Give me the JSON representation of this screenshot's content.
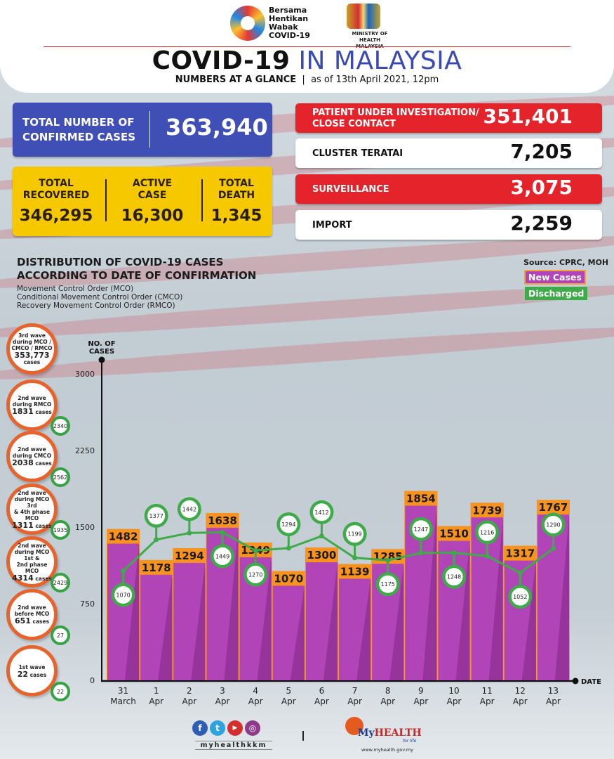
{
  "header": {
    "campaign_logo": [
      "Bersama",
      "Hentikan",
      "Wabak",
      "COVID-19"
    ],
    "ministry": [
      "MINISTRY OF HEALTH",
      "MALAYSIA"
    ],
    "title_bold": "COVID-19",
    "title_light": "IN MALAYSIA",
    "subtitle_bold": "NUMBERS AT A GLANCE",
    "subtitle_sep": "|",
    "subtitle_date": "as of 13th April 2021, 12pm"
  },
  "summary": {
    "confirmed": {
      "label_1": "TOTAL NUMBER OF",
      "label_2": "CONFIRMED CASES",
      "value": "363,940"
    },
    "recovered": {
      "label_1": "TOTAL",
      "label_2": "RECOVERED",
      "value": "346,295"
    },
    "active": {
      "label_1": "ACTIVE",
      "label_2": "CASE",
      "value": "16,300"
    },
    "death": {
      "label_1": "TOTAL",
      "label_2": "DEATH",
      "value": "1,345"
    }
  },
  "categories": [
    {
      "label_1": "PATIENT UNDER INVESTIGATION/",
      "label_2": "CLOSE CONTACT",
      "value": "351,401"
    },
    {
      "label_1": "CLUSTER TERATAI",
      "label_2": "",
      "value": "7,205"
    },
    {
      "label_1": "SURVEILLANCE",
      "label_2": "",
      "value": "3,075"
    },
    {
      "label_1": "IMPORT",
      "label_2": "",
      "value": "2,259"
    }
  ],
  "distribution": {
    "title_1": "DISTRIBUTION OF COVID-19 CASES",
    "title_2": "ACCORDING TO DATE OF CONFIRMATION",
    "notes": [
      "Movement Control Order (MCO)",
      "Conditional Movement Control Order (CMCO)",
      "Recovery Movement Control Order (RMCO)"
    ],
    "source": "Source: CPRC, MOH"
  },
  "waves": [
    {
      "lines": [
        "3rd wave",
        "during MCO /",
        "CMCO / RMCO"
      ],
      "cases": "353,773",
      "suffix": "cases",
      "discharged": ""
    },
    {
      "lines": [
        "2nd wave",
        "during RMCO"
      ],
      "cases": "1831",
      "suffix": "cases",
      "discharged": "2340"
    },
    {
      "lines": [
        "2nd wave",
        "during CMCO"
      ],
      "cases": "2038",
      "suffix": "cases",
      "discharged": "2562"
    },
    {
      "lines": [
        "2nd wave",
        "during MCO 3rd",
        "& 4th phase MCO"
      ],
      "cases": "1311",
      "suffix": "cases",
      "discharged": "1935"
    },
    {
      "lines": [
        "2nd wave",
        "during MCO 1st &",
        "2nd phase MCO"
      ],
      "cases": "4314",
      "suffix": "cases",
      "discharged": "2429"
    },
    {
      "lines": [
        "2nd wave",
        "before MCO"
      ],
      "cases": "651",
      "suffix": "cases",
      "discharged": "27"
    },
    {
      "lines": [
        "1st wave"
      ],
      "cases": "22",
      "suffix": "cases",
      "discharged": "22"
    }
  ],
  "chart_data": {
    "type": "bar",
    "title": "DISTRIBUTION OF COVID-19 CASES ACCORDING TO DATE OF CONFIRMATION",
    "xlabel": "DATE",
    "ylabel": "NO. OF CASES",
    "ylim": [
      0,
      3000
    ],
    "yticks": [
      0,
      750,
      1500,
      2250,
      3000
    ],
    "categories": [
      [
        "31",
        "March"
      ],
      [
        "1",
        "Apr"
      ],
      [
        "2",
        "Apr"
      ],
      [
        "3",
        "Apr"
      ],
      [
        "4",
        "Apr"
      ],
      [
        "5",
        "Apr"
      ],
      [
        "6",
        "Apr"
      ],
      [
        "7",
        "Apr"
      ],
      [
        "8",
        "Apr"
      ],
      [
        "9",
        "Apr"
      ],
      [
        "10",
        "Apr"
      ],
      [
        "11",
        "Apr"
      ],
      [
        "12",
        "Apr"
      ],
      [
        "13",
        "Apr"
      ]
    ],
    "series": [
      {
        "name": "New Cases",
        "type": "bar",
        "color": "#b145b8",
        "label_color": "#f7931e",
        "values": [
          1482,
          1178,
          1294,
          1638,
          1349,
          1070,
          1300,
          1139,
          1285,
          1854,
          1510,
          1739,
          1317,
          1767
        ]
      },
      {
        "name": "Discharged",
        "type": "line",
        "color": "#3eaa4a",
        "values": [
          1070,
          1377,
          1442,
          1449,
          1270,
          1294,
          1412,
          1199,
          1175,
          1247,
          1248,
          1216,
          1052,
          1290
        ]
      }
    ],
    "legend": "top-right"
  },
  "footer": {
    "social": [
      "f",
      "t",
      "▶",
      "◎"
    ],
    "handle": "myhealthkkm",
    "separator": "|",
    "brand_my": "My",
    "brand_health": "HEALTH",
    "tagline": "for life",
    "url": "www.myhealth.gov.my"
  }
}
